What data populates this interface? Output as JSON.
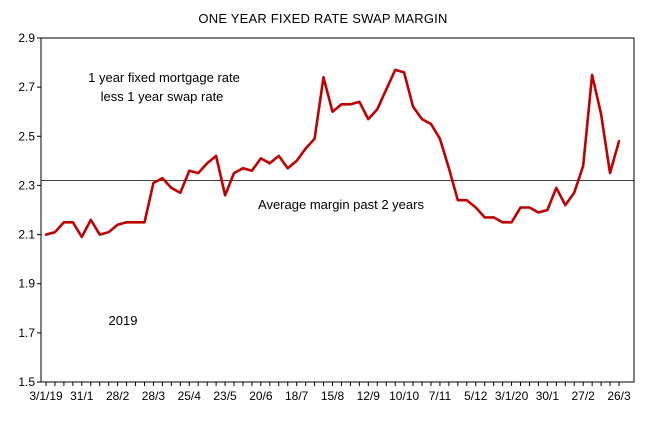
{
  "chart_data": {
    "type": "line",
    "title": "ONE YEAR FIXED RATE SWAP MARGIN",
    "xlabel": "",
    "ylabel": "",
    "ylim": [
      1.5,
      2.9
    ],
    "yticks": [
      "1.5",
      "1.7",
      "1.9",
      "2.1",
      "2.3",
      "2.5",
      "2.7",
      "2.9"
    ],
    "xtick_labels": [
      "3/1/19",
      "31/1",
      "28/2",
      "28/3",
      "25/4",
      "23/5",
      "20/6",
      "18/7",
      "15/8",
      "12/9",
      "10/10",
      "7/11",
      "5/12",
      "3/1/20",
      "30/1",
      "27/2",
      "26/3"
    ],
    "grid": false,
    "series": [
      {
        "color": "#c00000",
        "values": [
          2.1,
          2.11,
          2.15,
          2.15,
          2.09,
          2.16,
          2.1,
          2.11,
          2.14,
          2.15,
          2.15,
          2.15,
          2.31,
          2.33,
          2.29,
          2.27,
          2.36,
          2.35,
          2.39,
          2.42,
          2.26,
          2.35,
          2.37,
          2.36,
          2.41,
          2.39,
          2.42,
          2.37,
          2.4,
          2.45,
          2.49,
          2.74,
          2.6,
          2.63,
          2.63,
          2.64,
          2.57,
          2.61,
          2.69,
          2.77,
          2.76,
          2.62,
          2.57,
          2.55,
          2.49,
          2.37,
          2.24,
          2.24,
          2.21,
          2.17,
          2.17,
          2.15,
          2.15,
          2.21,
          2.21,
          2.19,
          2.2,
          2.29,
          2.22,
          2.27,
          2.38,
          2.75,
          2.59,
          2.35,
          2.48
        ]
      }
    ],
    "reference_line": {
      "value": 2.32,
      "label": "Average margin past 2 years"
    },
    "annotations": {
      "series_note_line1": "1 year fixed mortgage rate",
      "series_note_line2": "less 1 year swap rate",
      "year_note": "2019"
    }
  }
}
